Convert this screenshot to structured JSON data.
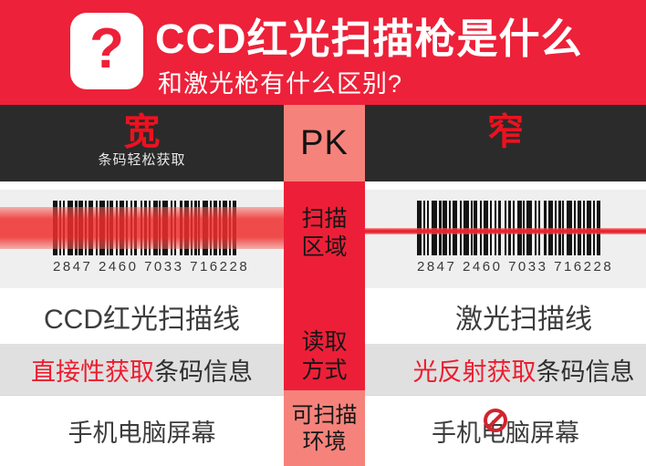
{
  "header": {
    "icon_glyph": "?",
    "title": "CCD红光扫描枪是什么",
    "subtitle": "和激光枪有什么区别?"
  },
  "pk_bar": {
    "left_label": "宽",
    "left_sub": "条码轻松获取",
    "center_label": "PK",
    "right_label": "窄"
  },
  "center_column": {
    "scan_area_line1": "扫描",
    "scan_area_line2": "区域",
    "read_method_line1": "读取",
    "read_method_line2": "方式",
    "environment_line1": "可扫描",
    "environment_line2": "环境"
  },
  "barcode": {
    "digits": "2847 2460 7033 716228",
    "bars": [
      [
        5,
        2
      ],
      [
        2,
        2
      ],
      [
        2,
        3
      ],
      [
        6,
        2
      ],
      [
        3,
        1
      ],
      [
        5,
        2
      ],
      [
        2,
        2
      ],
      [
        5,
        3
      ],
      [
        2,
        2
      ],
      [
        6,
        2
      ],
      [
        2,
        1
      ],
      [
        4,
        3
      ],
      [
        2,
        2
      ],
      [
        5,
        2
      ],
      [
        2,
        3
      ],
      [
        2,
        2
      ],
      [
        3,
        4
      ],
      [
        2,
        2
      ],
      [
        3,
        2
      ],
      [
        2,
        3
      ],
      [
        5,
        1
      ],
      [
        2,
        2
      ],
      [
        6,
        3
      ],
      [
        2,
        2
      ],
      [
        2,
        4
      ],
      [
        3,
        2
      ],
      [
        5,
        2
      ],
      [
        2,
        2
      ],
      [
        3,
        1
      ],
      [
        2,
        3
      ],
      [
        6,
        2
      ],
      [
        2,
        2
      ],
      [
        4,
        2
      ],
      [
        2,
        2
      ],
      [
        5,
        2
      ],
      [
        2,
        2
      ],
      [
        4,
        0
      ]
    ]
  },
  "rows": {
    "scan_line_left": "CCD红光扫描线",
    "scan_line_right": "激光扫描线",
    "read_left_highlight": "直接性获取",
    "read_left_rest": "条码信息",
    "read_right_highlight": "光反射获取",
    "read_right_rest": "条码信息",
    "env_left": "手机电脑屏幕",
    "env_right": "手机电脑屏幕"
  },
  "icons": {
    "question_icon": "question-mark",
    "prohibition_icon": "no-sign"
  },
  "colors": {
    "primary_red": "#ed2139",
    "salmon": "#f5837b",
    "dark_bar": "#2b2b2b",
    "accent_red": "#ed1c2e",
    "gray_row": "#e0e0e0",
    "panel_gray": "#efefef",
    "muted_text": "#b5b5b5",
    "scan_band_red": "#f02e2e",
    "laser_red": "#e8252f"
  }
}
